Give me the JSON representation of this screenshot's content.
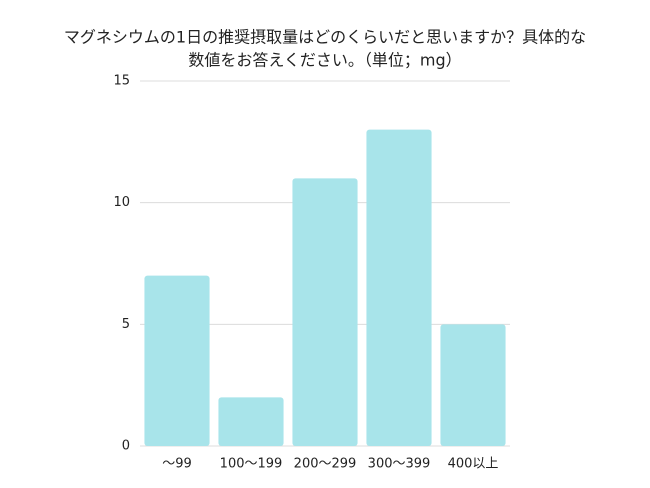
{
  "chart_data": {
    "type": "bar",
    "title": [
      "マグネシウムの1日の推奨摂取量はどのくらいだと思いますか？具体的な",
      "数値をお答えください。（単位；mg）"
    ],
    "categories": [
      "〜99",
      "100〜199",
      "200〜299",
      "300〜399",
      "400以上"
    ],
    "values": [
      7,
      2,
      11,
      13,
      5
    ],
    "color": "#a8e4ea",
    "ylim": [
      0,
      15
    ],
    "yticks": [
      0,
      5,
      10,
      15
    ],
    "grid": true
  }
}
